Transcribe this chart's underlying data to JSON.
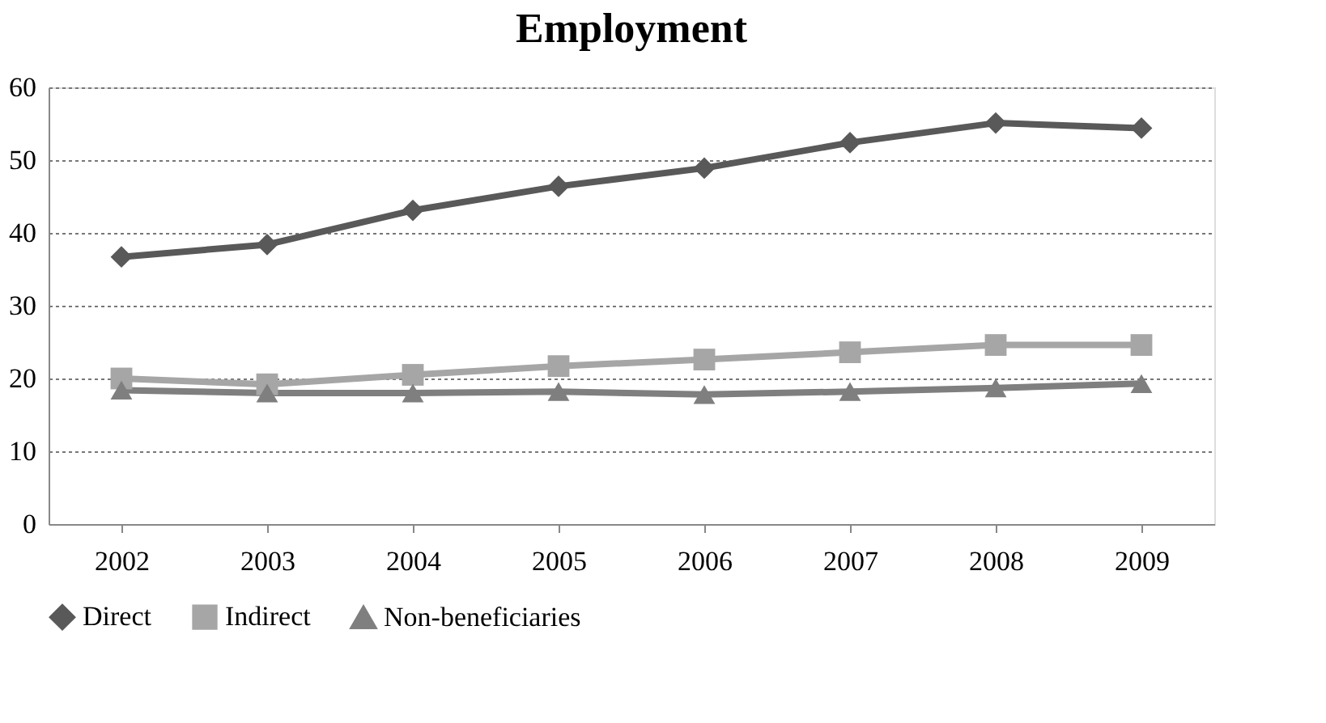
{
  "chart_data": {
    "type": "line",
    "title": "Employment",
    "categories": [
      "2002",
      "2003",
      "2004",
      "2005",
      "2006",
      "2007",
      "2008",
      "2009"
    ],
    "series": [
      {
        "name": "Direct",
        "color": "#595959",
        "marker": "diamond",
        "values": [
          36.7,
          38.4,
          43.1,
          46.4,
          48.9,
          52.4,
          55.1,
          54.4
        ]
      },
      {
        "name": "Indirect",
        "color": "#a6a6a6",
        "marker": "square",
        "values": [
          20.0,
          19.2,
          20.5,
          21.7,
          22.6,
          23.6,
          24.6,
          24.6
        ]
      },
      {
        "name": "Non-beneficiaries",
        "color": "#7f7f7f",
        "marker": "triangle",
        "values": [
          18.4,
          18.0,
          18.0,
          18.2,
          17.8,
          18.2,
          18.7,
          19.3
        ]
      }
    ],
    "ylim": [
      0,
      60
    ],
    "yticks": [
      0,
      10,
      20,
      30,
      40,
      50,
      60
    ],
    "grid": "y",
    "legend": "bottom",
    "line_style": "solid"
  }
}
